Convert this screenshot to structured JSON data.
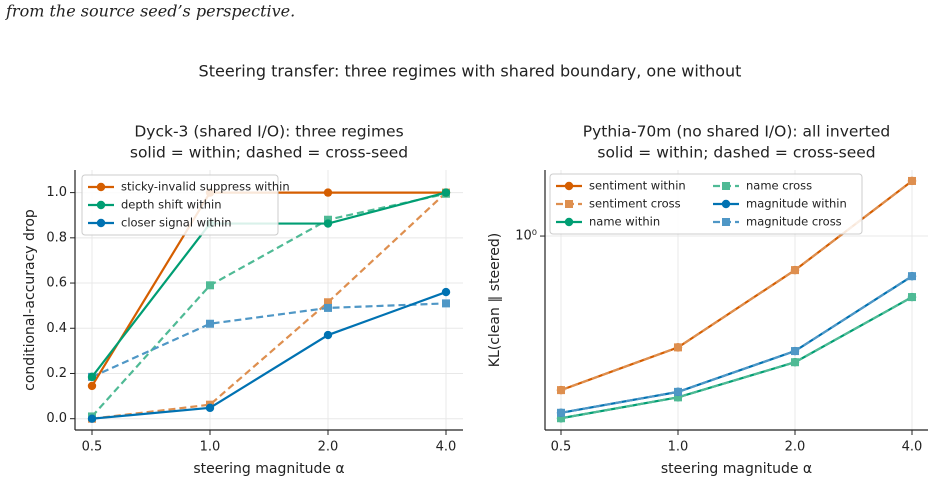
{
  "caption_fragment": "from the source seed’s perspective.",
  "suptitle": "Steering transfer: three regimes with shared boundary, one without",
  "chart_data": [
    {
      "type": "line",
      "title": "Dyck-3 (shared I/O): three regimes",
      "subtitle": "solid = within; dashed = cross-seed",
      "x_label": "steering magnitude α",
      "y_label": "conditional-accuracy drop",
      "categories": [
        "0.5",
        "1.0",
        "2.0",
        "4.0"
      ],
      "ylim": [
        -0.05,
        1.1
      ],
      "yticks": [
        {
          "value": 0,
          "label": "0.0"
        },
        {
          "value": 0.2,
          "label": "0.2"
        },
        {
          "value": 0.4,
          "label": "0.4"
        },
        {
          "value": 0.6,
          "label": "0.6"
        },
        {
          "value": 0.8,
          "label": "0.8"
        },
        {
          "value": 1,
          "label": "1.0"
        }
      ],
      "grid": true,
      "legend": "upper left",
      "legend_columns": 1,
      "series": [
        {
          "color": "#de8f4f",
          "linestyle": "dashed",
          "marker": "square",
          "values": [
            0.0,
            0.062,
            0.515,
            1.0
          ]
        },
        {
          "color": "#4fba95",
          "linestyle": "dashed",
          "marker": "square",
          "values": [
            0.01,
            0.59,
            0.88,
            0.995
          ]
        },
        {
          "color": "#4f97c6",
          "linestyle": "dashed",
          "marker": "square",
          "values": [
            0.185,
            0.42,
            0.49,
            0.51
          ]
        },
        {
          "name": "sticky-invalid suppress within",
          "color": "#d55e00",
          "linestyle": "solid",
          "marker": "circle",
          "values": [
            0.145,
            1.0,
            1.0,
            1.0
          ]
        },
        {
          "name": "depth shift within",
          "color": "#009e73",
          "linestyle": "solid",
          "marker": "circle",
          "values": [
            0.185,
            0.863,
            0.863,
            1.0
          ]
        },
        {
          "name": "closer signal within",
          "color": "#0072b2",
          "linestyle": "solid",
          "marker": "circle",
          "values": [
            0.0,
            0.048,
            0.37,
            0.56
          ]
        }
      ]
    },
    {
      "type": "line",
      "title": "Pythia-70m (no shared I/O): all inverted",
      "subtitle": "solid = within; dashed = cross-seed",
      "x_label": "steering magnitude α",
      "y_label": "KL(clean ∥ steered)",
      "categories": [
        "0.5",
        "1.0",
        "2.0",
        "4.0"
      ],
      "yscale": "log",
      "ylim": [
        0.187,
        1.77
      ],
      "yticks": [
        {
          "value": 1,
          "label": "10⁰"
        }
      ],
      "grid": true,
      "legend": "upper left",
      "legend_columns": 2,
      "series": [
        {
          "name": "sentiment within",
          "color": "#d55e00",
          "linestyle": "solid",
          "marker": "circle",
          "values": [
            0.264,
            0.382,
            0.745,
            1.61
          ]
        },
        {
          "name": "sentiment cross",
          "color": "#de8f4f",
          "linestyle": "dashed",
          "marker": "square",
          "values": [
            0.264,
            0.382,
            0.745,
            1.61
          ]
        },
        {
          "name": "name within",
          "color": "#009e73",
          "linestyle": "solid",
          "marker": "circle",
          "values": [
            0.207,
            0.248,
            0.336,
            0.59
          ]
        },
        {
          "name": "name cross",
          "color": "#4fba95",
          "linestyle": "dashed",
          "marker": "square",
          "values": [
            0.207,
            0.248,
            0.336,
            0.59
          ]
        },
        {
          "name": "magnitude within",
          "color": "#0072b2",
          "linestyle": "solid",
          "marker": "circle",
          "values": [
            0.217,
            0.26,
            0.37,
            0.707
          ]
        },
        {
          "name": "magnitude cross",
          "color": "#4f97c6",
          "linestyle": "dashed",
          "marker": "square",
          "values": [
            0.217,
            0.26,
            0.37,
            0.707
          ]
        }
      ]
    }
  ]
}
